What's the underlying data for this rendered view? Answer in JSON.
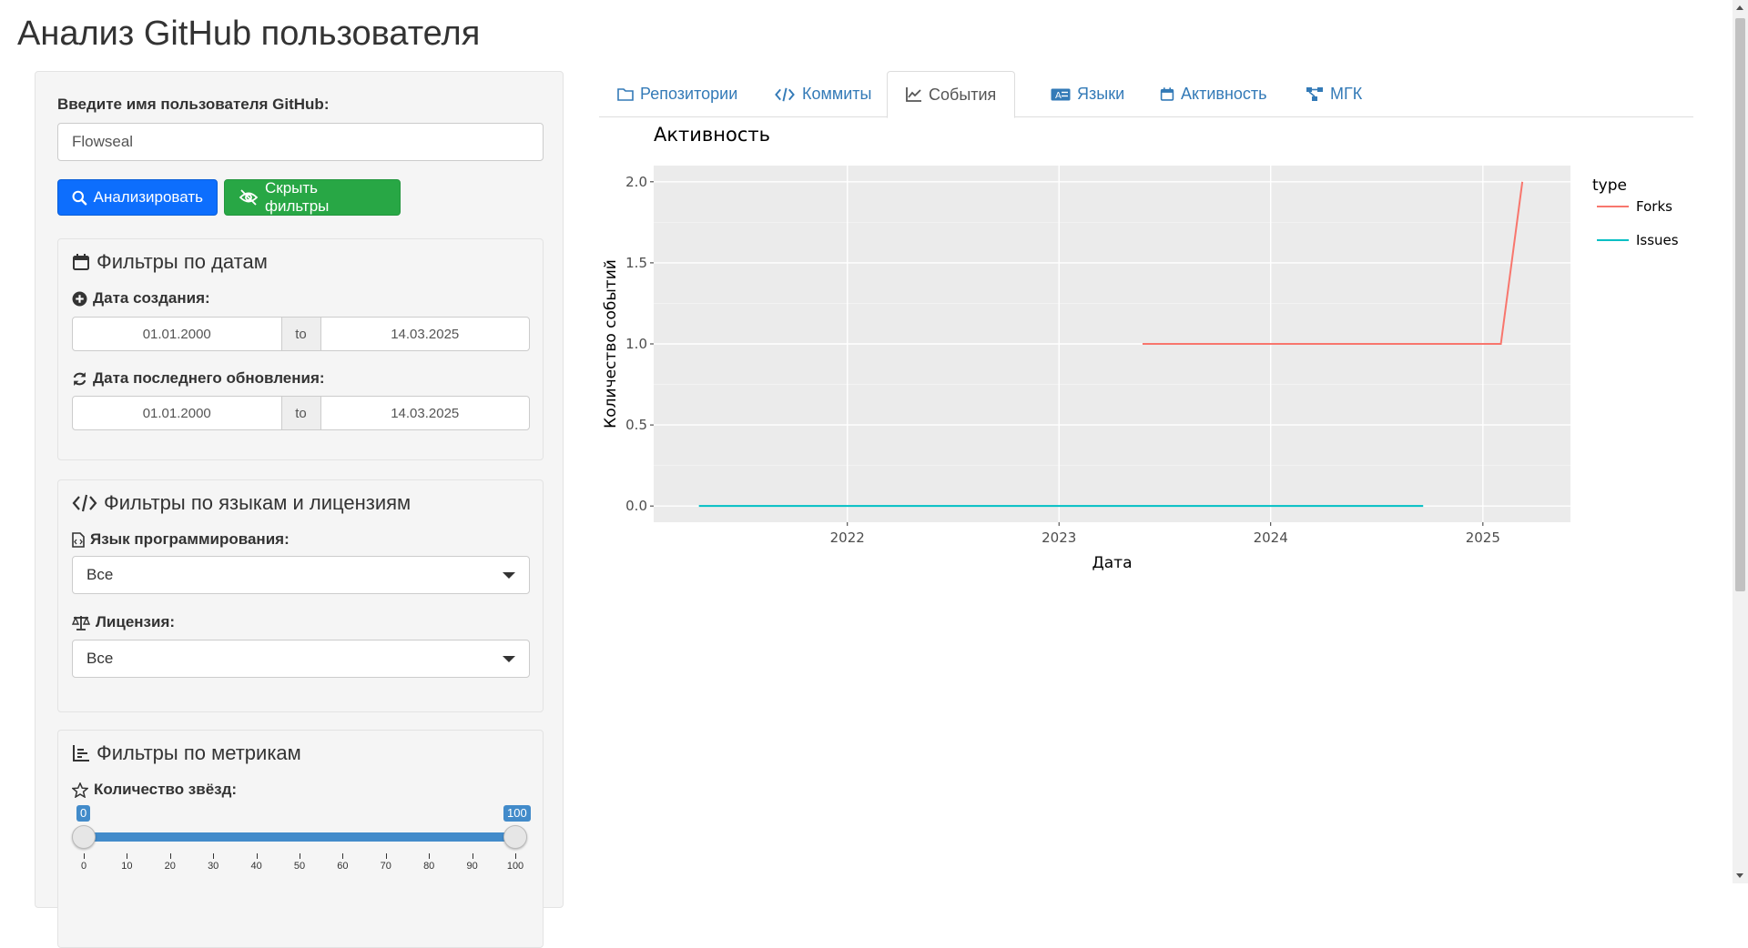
{
  "page": {
    "title": "Анализ GitHub пользователя"
  },
  "sidebar": {
    "username_label": "Введите имя пользователя GitHub:",
    "username_value": "Flowseal",
    "analyze_button": "Анализировать",
    "hide_filters_button": "Скрыть фильтры",
    "date_filters": {
      "title": "Фильтры по датам",
      "created_label": "Дата создания:",
      "created_from": "01.01.2000",
      "created_to": "14.03.2025",
      "updated_label": "Дата последнего обновления:",
      "updated_from": "01.01.2000",
      "updated_to": "14.03.2025",
      "separator": "to"
    },
    "lang_filters": {
      "title": "Фильтры по языкам и лицензиям",
      "language_label": "Язык программирования:",
      "language_value": "Все",
      "license_label": "Лицензия:",
      "license_value": "Все"
    },
    "metric_filters": {
      "title": "Фильтры по метрикам",
      "stars_label": "Количество звёзд:",
      "stars_min": "0",
      "stars_max": "100",
      "ticks": [
        "0",
        "10",
        "20",
        "30",
        "40",
        "50",
        "60",
        "70",
        "80",
        "90",
        "100"
      ]
    }
  },
  "tabs": [
    {
      "label": "Репозитории",
      "icon": "folder-icon"
    },
    {
      "label": "Коммиты",
      "icon": "code-icon"
    },
    {
      "label": "События",
      "icon": "line-chart-icon",
      "active": true
    },
    {
      "label": "Языки",
      "icon": "language-icon"
    },
    {
      "label": "Активность",
      "icon": "calendar-icon"
    },
    {
      "label": "МГК",
      "icon": "sitemap-icon"
    }
  ],
  "colors": {
    "primary": "#0d6efd",
    "success": "#28a745",
    "link": "#337ab7",
    "forks": "#F8766D",
    "issues": "#00BFC4",
    "panel": "#ebebeb"
  },
  "chart_data": {
    "type": "line",
    "title": "Активность",
    "xlabel": "Дата",
    "ylabel": "Количество событий",
    "legend_title": "type",
    "legend_position": "right",
    "grid": true,
    "xlim": [
      "2021-02-01",
      "2025-06-01"
    ],
    "ylim": [
      -0.1,
      2.1
    ],
    "x_ticks": [
      "2022",
      "2023",
      "2024",
      "2025"
    ],
    "y_ticks": [
      "0.0",
      "0.5",
      "1.0",
      "1.5",
      "2.0"
    ],
    "series": [
      {
        "name": "Forks",
        "color": "#F8766D",
        "points": [
          [
            "2023-05-25",
            1
          ],
          [
            "2025-02-01",
            1
          ],
          [
            "2025-03-10",
            2
          ]
        ]
      },
      {
        "name": "Issues",
        "color": "#00BFC4",
        "points": [
          [
            "2021-04-20",
            0
          ],
          [
            "2024-09-20",
            0
          ]
        ]
      }
    ]
  }
}
